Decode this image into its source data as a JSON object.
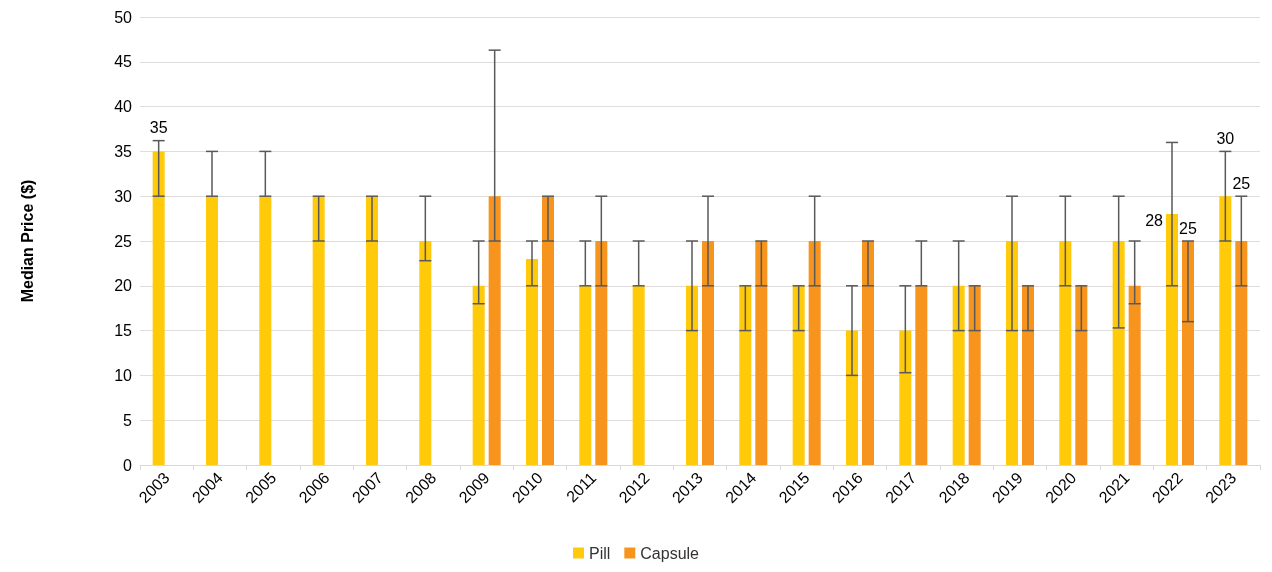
{
  "chart_data": {
    "type": "bar",
    "ylabel": "Median Price ($)",
    "categories": [
      "2003",
      "2004",
      "2005",
      "2006",
      "2007",
      "2008",
      "2009",
      "2010",
      "2011",
      "2012",
      "2013",
      "2014",
      "2015",
      "2016",
      "2017",
      "2018",
      "2019",
      "2020",
      "2021",
      "2022",
      "2023"
    ],
    "series": [
      {
        "name": "Pill",
        "color": "#ffca0a",
        "values": [
          35,
          30,
          30,
          30,
          30,
          25,
          20,
          23,
          20,
          20,
          20,
          20,
          20,
          15,
          15,
          20,
          25,
          25,
          25,
          28,
          30
        ],
        "errors": [
          [
            30,
            36.2
          ],
          [
            30,
            35
          ],
          [
            30,
            35
          ],
          [
            25,
            30
          ],
          [
            25,
            30
          ],
          [
            22.8,
            30
          ],
          [
            18,
            25
          ],
          [
            20,
            25
          ],
          [
            20,
            25
          ],
          [
            20,
            25
          ],
          [
            15,
            25
          ],
          [
            15,
            20
          ],
          [
            15,
            20
          ],
          [
            10,
            20
          ],
          [
            10.3,
            20
          ],
          [
            15,
            25
          ],
          [
            15,
            30
          ],
          [
            20,
            30
          ],
          [
            15.3,
            30
          ],
          [
            20,
            36
          ],
          [
            25,
            35
          ]
        ],
        "value_labels": [
          "35",
          null,
          null,
          null,
          null,
          null,
          null,
          null,
          null,
          null,
          null,
          null,
          null,
          null,
          null,
          null,
          null,
          null,
          null,
          "28",
          "30"
        ]
      },
      {
        "name": "Capsule",
        "color": "#f7941d",
        "values": [
          null,
          null,
          null,
          null,
          null,
          null,
          30,
          30,
          25,
          null,
          25,
          25,
          25,
          25,
          20,
          20,
          20,
          20,
          20,
          25,
          25
        ],
        "errors": [
          null,
          null,
          null,
          null,
          null,
          null,
          [
            25,
            46.3
          ],
          [
            25,
            30
          ],
          [
            20,
            30
          ],
          null,
          [
            20,
            30
          ],
          [
            20,
            25
          ],
          [
            20,
            30
          ],
          [
            20,
            25
          ],
          [
            20,
            25
          ],
          [
            15,
            20
          ],
          [
            15,
            20
          ],
          [
            15,
            20
          ],
          [
            18,
            25
          ],
          [
            16,
            25
          ],
          [
            20,
            30
          ]
        ],
        "value_labels": [
          null,
          null,
          null,
          null,
          null,
          null,
          null,
          null,
          null,
          null,
          null,
          null,
          null,
          null,
          null,
          null,
          null,
          null,
          null,
          "25",
          "25"
        ]
      }
    ],
    "ylim": [
      0,
      50
    ],
    "yticks": [
      0,
      5,
      10,
      15,
      20,
      25,
      30,
      35,
      40,
      45,
      50
    ],
    "grid": "y",
    "legend": "bottom"
  }
}
